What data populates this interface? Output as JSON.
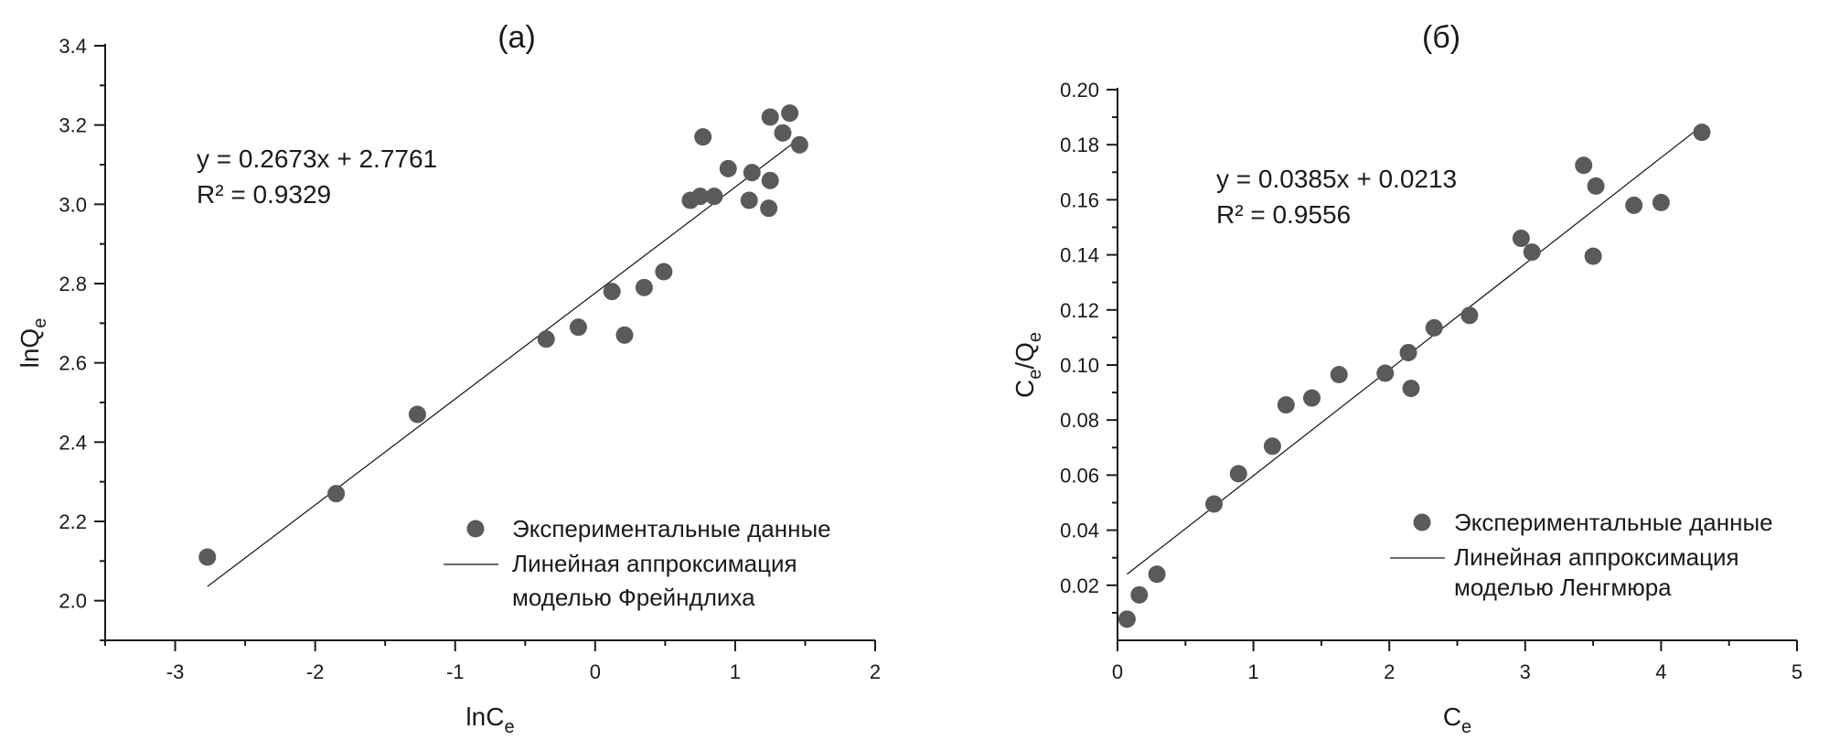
{
  "chart_data": [
    {
      "type": "scatter",
      "title": "(a)",
      "xlabel": "lnC",
      "xlabel_sub": "e",
      "ylabel": "lnQ",
      "ylabel_sub": "e",
      "xlim": [
        -3.5,
        2
      ],
      "ylim": [
        1.9,
        3.4
      ],
      "xticks": [
        -3,
        -2,
        -1,
        0,
        1,
        2
      ],
      "xtick_labels": [
        "-3",
        "-2",
        "-1",
        "0",
        "1",
        "2"
      ],
      "yticks": [
        2.0,
        2.2,
        2.4,
        2.6,
        2.8,
        3.0,
        3.2,
        3.4
      ],
      "ytick_labels": [
        "2.0",
        "2.2",
        "2.4",
        "2.6",
        "2.8",
        "3.0",
        "3.2",
        "3.4"
      ],
      "equation": "y = 0.2673x + 2.7761",
      "r2": "R² = 0.9329",
      "fit": {
        "slope": 0.2673,
        "intercept": 2.7761,
        "x_range": [
          -2.77,
          1.45
        ]
      },
      "series": [
        {
          "name": "Экспериментальные данные",
          "points": [
            [
              -2.77,
              2.11
            ],
            [
              -1.85,
              2.27
            ],
            [
              -1.27,
              2.47
            ],
            [
              -0.35,
              2.66
            ],
            [
              -0.12,
              2.69
            ],
            [
              0.12,
              2.78
            ],
            [
              0.21,
              2.67
            ],
            [
              0.35,
              2.79
            ],
            [
              0.49,
              2.83
            ],
            [
              0.68,
              3.01
            ],
            [
              0.75,
              3.02
            ],
            [
              0.77,
              3.17
            ],
            [
              0.85,
              3.02
            ],
            [
              0.95,
              3.09
            ],
            [
              1.1,
              3.01
            ],
            [
              1.12,
              3.08
            ],
            [
              1.24,
              2.99
            ],
            [
              1.25,
              3.06
            ],
            [
              1.25,
              3.22
            ],
            [
              1.34,
              3.18
            ],
            [
              1.39,
              3.23
            ],
            [
              1.46,
              3.15
            ]
          ]
        }
      ],
      "legend": {
        "placement": "bottom-right",
        "points_label": "Экспериментальные данные",
        "line_label_1": "Линейная аппроксимация",
        "line_label_2": "моделью Фрейндлиха"
      }
    },
    {
      "type": "scatter",
      "title": "(б)",
      "xlabel": "C",
      "xlabel_sub": "e",
      "ylabel": "C",
      "ylabel_sub": "e",
      "ylabel_mid": "/Q",
      "ylabel_sub2": "e",
      "xlim": [
        0,
        5
      ],
      "ylim": [
        0,
        0.2
      ],
      "xticks": [
        0,
        1,
        2,
        3,
        4,
        5
      ],
      "xtick_labels": [
        "0",
        "1",
        "2",
        "3",
        "4",
        "5"
      ],
      "yticks": [
        0.02,
        0.04,
        0.06,
        0.08,
        0.1,
        0.12,
        0.14,
        0.16,
        0.18,
        0.2
      ],
      "ytick_labels": [
        "0.02",
        "0.04",
        "0.06",
        "0.08",
        "0.10",
        "0.12",
        "0.14",
        "0.16",
        "0.18",
        "0.20"
      ],
      "equation": "y = 0.0385x + 0.0213",
      "r2": "R² = 0.9556",
      "fit": {
        "slope": 0.0385,
        "intercept": 0.0213,
        "x_range": [
          0.07,
          4.3
        ]
      },
      "series": [
        {
          "name": "Экспериментальные данные",
          "points": [
            [
              0.07,
              0.0077
            ],
            [
              0.16,
              0.0165
            ],
            [
              0.29,
              0.024
            ],
            [
              0.71,
              0.0495
            ],
            [
              0.89,
              0.0605
            ],
            [
              1.14,
              0.0705
            ],
            [
              1.24,
              0.0855
            ],
            [
              1.43,
              0.088
            ],
            [
              1.63,
              0.0965
            ],
            [
              1.97,
              0.097
            ],
            [
              2.14,
              0.1045
            ],
            [
              2.16,
              0.0915
            ],
            [
              2.33,
              0.1135
            ],
            [
              2.59,
              0.118
            ],
            [
              2.97,
              0.146
            ],
            [
              3.05,
              0.141
            ],
            [
              3.43,
              0.1725
            ],
            [
              3.5,
              0.1395
            ],
            [
              3.52,
              0.165
            ],
            [
              3.8,
              0.158
            ],
            [
              4.0,
              0.159
            ],
            [
              4.3,
              0.1845
            ]
          ]
        }
      ],
      "legend": {
        "placement": "bottom-right",
        "points_label": "Экспериментальные данные",
        "line_label_1": "Линейная аппроксимация",
        "line_label_2": "моделью Ленгмюра"
      }
    }
  ]
}
